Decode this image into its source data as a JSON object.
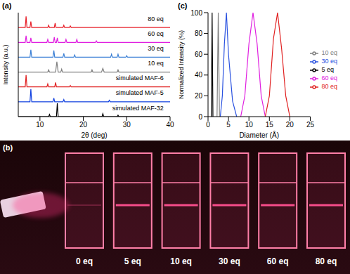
{
  "chart_data": [
    {
      "panel": "(a)",
      "type": "line",
      "x_label": "2θ (deg)",
      "y_label": "Intensity (a.u.)",
      "xlim": [
        5,
        40
      ],
      "xticks": [
        10,
        20,
        30,
        40
      ],
      "ylim": [
        0,
        7
      ],
      "tick_labels": "x",
      "series": [
        {
          "name": "simulated MAF-32",
          "color": "#000000",
          "x": [
            5,
            12,
            12.2,
            12.4,
            13.8,
            14,
            14.2,
            24.3,
            24.5,
            24.7,
            27.8,
            28,
            28.2,
            40
          ],
          "values": [
            0,
            0,
            0.15,
            0,
            0,
            0.9,
            0,
            0,
            0.2,
            0,
            0,
            0.1,
            0,
            0
          ]
        },
        {
          "name": "simulated MAF-5",
          "color": "#1040e0",
          "x": [
            5,
            7.7,
            7.9,
            8.1,
            13,
            13.2,
            13.4,
            15.3,
            15.5,
            15.7,
            25.8,
            26,
            26.2,
            40
          ],
          "values": [
            1,
            1,
            1.85,
            1,
            1,
            1.25,
            1,
            1,
            1.15,
            1,
            1,
            1.1,
            1,
            1
          ]
        },
        {
          "name": "simulated MAF-6",
          "color": "#e02020",
          "x": [
            5,
            6.6,
            6.8,
            7,
            11.6,
            11.8,
            12,
            13.4,
            13.6,
            13.8,
            16.8,
            17,
            17.2,
            40
          ],
          "values": [
            2,
            2,
            2.8,
            2,
            2,
            2.2,
            2,
            2,
            2.3,
            2,
            2,
            2.1,
            2,
            2
          ]
        },
        {
          "name": "10 eq",
          "color": "#808080",
          "x": [
            5,
            11.8,
            12,
            12.2,
            13.6,
            13.9,
            14.2,
            14.8,
            15,
            15.2,
            21.8,
            22,
            22.2,
            24.2,
            24.5,
            24.8,
            27.8,
            28,
            28.2,
            40
          ],
          "values": [
            3,
            3,
            3.15,
            3,
            3,
            3.7,
            3,
            3,
            3.2,
            3,
            3,
            3.15,
            3,
            3,
            3.25,
            3,
            3,
            3.15,
            3,
            3
          ]
        },
        {
          "name": "30 eq",
          "color": "#3a7fd5",
          "x": [
            5,
            7.7,
            7.9,
            8.1,
            13,
            13.2,
            13.4,
            15.3,
            15.5,
            15.7,
            17.8,
            18,
            18.2,
            26.3,
            26.5,
            26.7,
            27.8,
            28,
            28.2,
            29.8,
            30,
            30.2,
            40
          ],
          "values": [
            4,
            4,
            4.5,
            4,
            4,
            4.45,
            4,
            4,
            4.25,
            4,
            4,
            4.15,
            4,
            4,
            4.2,
            4,
            4,
            4.2,
            4,
            4,
            4.1,
            4,
            4
          ]
        },
        {
          "name": "60 eq",
          "color": "#e020e0",
          "x": [
            5,
            6.6,
            6.8,
            7,
            7.7,
            7.9,
            8.1,
            11.6,
            11.8,
            12,
            13.1,
            13.3,
            13.5,
            13.8,
            14,
            14.2,
            15.8,
            16,
            16.2,
            18.3,
            18.5,
            18.7,
            22.8,
            23,
            23.2,
            40
          ],
          "values": [
            5,
            5,
            5.45,
            5,
            5,
            5.3,
            5,
            5,
            5.2,
            5,
            5,
            5.35,
            5,
            5,
            5.3,
            5,
            5,
            5.2,
            5,
            5,
            5.2,
            5,
            5,
            5.1,
            5,
            5
          ]
        },
        {
          "name": "80 eq",
          "color": "#e8202a",
          "x": [
            5,
            6.6,
            6.8,
            7,
            7.7,
            7.9,
            8.1,
            11.8,
            12,
            12.2,
            13.3,
            13.5,
            13.7,
            15.3,
            15.5,
            15.7,
            16.8,
            17,
            17.2,
            40
          ],
          "values": [
            6,
            6,
            6.75,
            6,
            6,
            6.4,
            6,
            6,
            6.15,
            6,
            6,
            6.3,
            6,
            6,
            6.15,
            6,
            6,
            6.1,
            6,
            6
          ]
        }
      ]
    },
    {
      "panel": "(c)",
      "type": "line",
      "x_label": "Diameter (Å)",
      "y_label": "Normalized Intensity (%)",
      "xlim": [
        0,
        25
      ],
      "xticks": [
        0,
        5,
        10,
        15,
        20,
        25
      ],
      "ylim": [
        0,
        100
      ],
      "yticks": [
        0,
        20,
        40,
        60,
        80,
        100
      ],
      "legend": "right",
      "series": [
        {
          "name": "5 eq",
          "color": "#000000",
          "x": [
            0.8,
            1.0,
            1.2
          ],
          "values": [
            0,
            100,
            0
          ]
        },
        {
          "name": "10 eq",
          "color": "#808080",
          "x": [
            2.2,
            2.5,
            2.8
          ],
          "values": [
            0,
            100,
            0
          ]
        },
        {
          "name": "30 eq",
          "color": "#2a52e0",
          "x": [
            3.0,
            3.5,
            4.0,
            4.5,
            5.0,
            6.0,
            7.0
          ],
          "values": [
            0,
            20,
            70,
            100,
            60,
            15,
            0
          ]
        },
        {
          "name": "60 eq",
          "color": "#e020e0",
          "x": [
            8,
            9,
            10,
            11,
            12,
            13,
            14
          ],
          "values": [
            0,
            20,
            70,
            100,
            70,
            20,
            0
          ]
        },
        {
          "name": "80 eq",
          "color": "#e02020",
          "x": [
            14,
            15,
            16,
            17,
            18,
            19,
            20
          ],
          "values": [
            0,
            20,
            75,
            100,
            65,
            20,
            0
          ]
        }
      ]
    }
  ],
  "photo": {
    "panel": "(b)",
    "labels": [
      "0 eq",
      "5 eq",
      "10 eq",
      "30 eq",
      "60 eq",
      "80 eq"
    ]
  }
}
